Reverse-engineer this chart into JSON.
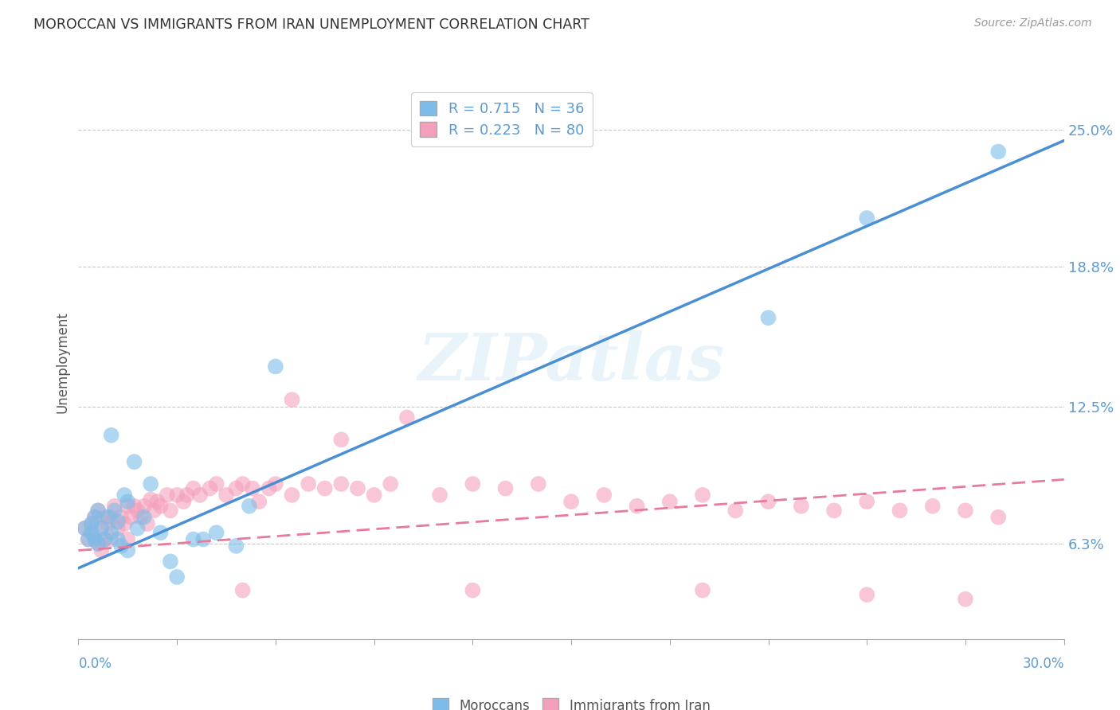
{
  "title": "MOROCCAN VS IMMIGRANTS FROM IRAN UNEMPLOYMENT CORRELATION CHART",
  "source": "Source: ZipAtlas.com",
  "ylabel": "Unemployment",
  "ytick_labels": [
    "6.3%",
    "12.5%",
    "18.8%",
    "25.0%"
  ],
  "ytick_values": [
    0.063,
    0.125,
    0.188,
    0.25
  ],
  "xlim": [
    0.0,
    0.3
  ],
  "ylim": [
    0.02,
    0.27
  ],
  "legend1_R": "0.715",
  "legend1_N": "36",
  "legend2_R": "0.223",
  "legend2_N": "80",
  "blue_color": "#7bbde8",
  "pink_color": "#f4a0bc",
  "blue_line_color": "#4a8fd4",
  "pink_line_color": "#e87a9a",
  "axis_label_color": "#5b9bd5",
  "watermark": "ZIPatlas",
  "blue_line_x": [
    0.0,
    0.3
  ],
  "blue_line_y": [
    0.052,
    0.245
  ],
  "pink_line_x": [
    0.0,
    0.3
  ],
  "pink_line_y": [
    0.06,
    0.092
  ],
  "blue_x": [
    0.002,
    0.003,
    0.004,
    0.004,
    0.005,
    0.005,
    0.006,
    0.006,
    0.007,
    0.008,
    0.009,
    0.01,
    0.01,
    0.011,
    0.012,
    0.012,
    0.013,
    0.014,
    0.015,
    0.015,
    0.017,
    0.018,
    0.02,
    0.022,
    0.025,
    0.028,
    0.03,
    0.035,
    0.038,
    0.042,
    0.048,
    0.052,
    0.06,
    0.21,
    0.24,
    0.28
  ],
  "blue_y": [
    0.07,
    0.065,
    0.072,
    0.068,
    0.075,
    0.065,
    0.078,
    0.063,
    0.07,
    0.065,
    0.075,
    0.112,
    0.068,
    0.078,
    0.073,
    0.065,
    0.062,
    0.085,
    0.082,
    0.06,
    0.1,
    0.07,
    0.075,
    0.09,
    0.068,
    0.055,
    0.048,
    0.065,
    0.065,
    0.068,
    0.062,
    0.08,
    0.143,
    0.165,
    0.21,
    0.24
  ],
  "pink_x": [
    0.002,
    0.003,
    0.004,
    0.004,
    0.005,
    0.005,
    0.006,
    0.006,
    0.007,
    0.007,
    0.008,
    0.008,
    0.009,
    0.01,
    0.01,
    0.011,
    0.012,
    0.013,
    0.014,
    0.015,
    0.015,
    0.016,
    0.017,
    0.018,
    0.019,
    0.02,
    0.021,
    0.022,
    0.023,
    0.024,
    0.025,
    0.027,
    0.028,
    0.03,
    0.032,
    0.033,
    0.035,
    0.037,
    0.04,
    0.042,
    0.045,
    0.048,
    0.05,
    0.053,
    0.055,
    0.058,
    0.06,
    0.065,
    0.07,
    0.075,
    0.08,
    0.085,
    0.09,
    0.095,
    0.1,
    0.11,
    0.12,
    0.13,
    0.14,
    0.15,
    0.16,
    0.17,
    0.18,
    0.19,
    0.2,
    0.21,
    0.22,
    0.23,
    0.24,
    0.25,
    0.26,
    0.27,
    0.28,
    0.05,
    0.12,
    0.19,
    0.24,
    0.27,
    0.065,
    0.08
  ],
  "pink_y": [
    0.07,
    0.065,
    0.072,
    0.068,
    0.075,
    0.065,
    0.078,
    0.063,
    0.07,
    0.06,
    0.075,
    0.065,
    0.072,
    0.075,
    0.065,
    0.08,
    0.07,
    0.075,
    0.072,
    0.08,
    0.065,
    0.075,
    0.08,
    0.078,
    0.075,
    0.08,
    0.072,
    0.083,
    0.078,
    0.082,
    0.08,
    0.085,
    0.078,
    0.085,
    0.082,
    0.085,
    0.088,
    0.085,
    0.088,
    0.09,
    0.085,
    0.088,
    0.09,
    0.088,
    0.082,
    0.088,
    0.09,
    0.085,
    0.09,
    0.088,
    0.09,
    0.088,
    0.085,
    0.09,
    0.12,
    0.085,
    0.09,
    0.088,
    0.09,
    0.082,
    0.085,
    0.08,
    0.082,
    0.085,
    0.078,
    0.082,
    0.08,
    0.078,
    0.082,
    0.078,
    0.08,
    0.078,
    0.075,
    0.042,
    0.042,
    0.042,
    0.04,
    0.038,
    0.128,
    0.11
  ]
}
